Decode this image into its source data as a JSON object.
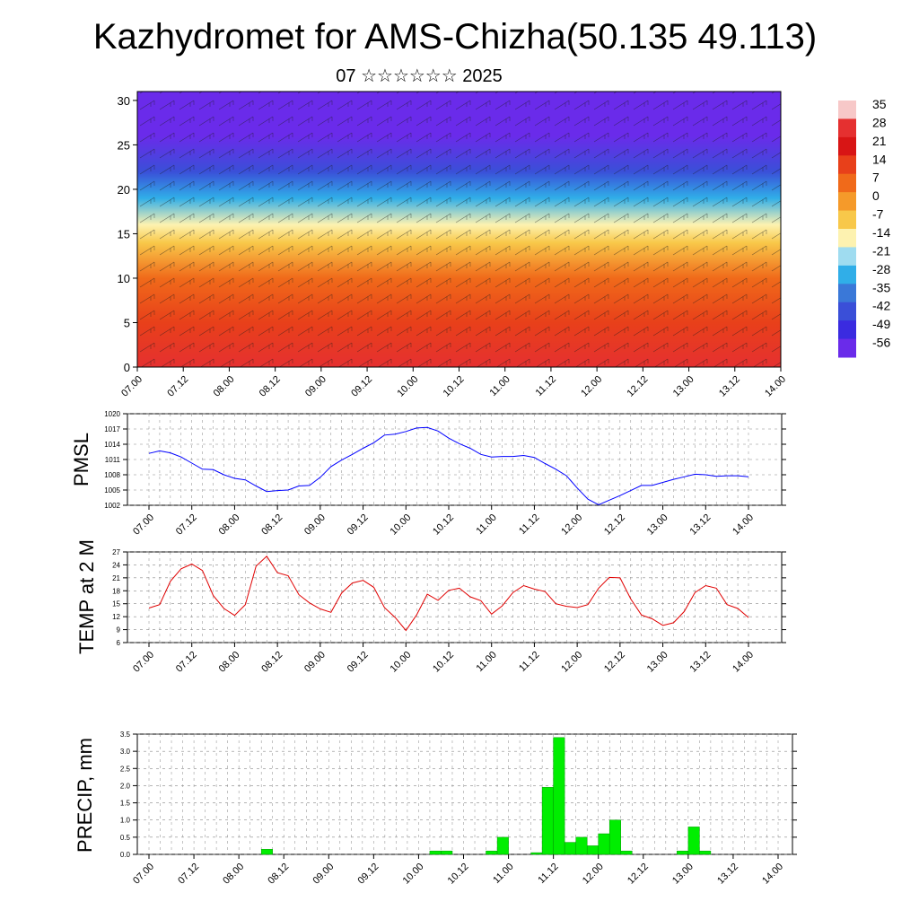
{
  "header": {
    "title": "Kazhydromet for AMS-Chizha(50.135 49.113)",
    "subtitle": "07 ☆☆☆☆☆☆ 2025"
  },
  "chart_data": [
    {
      "type": "heatmap",
      "title": "",
      "xlabel": "",
      "ylabel": "",
      "x_ticks": [
        "07.00",
        "07.12",
        "08.00",
        "08.12",
        "09.00",
        "09.12",
        "10.00",
        "10.12",
        "11.00",
        "11.12",
        "12.00",
        "12.12",
        "13.00",
        "13.12",
        "14.00"
      ],
      "y_ticks": [
        "0",
        "5",
        "10",
        "15",
        "20",
        "25",
        "30"
      ],
      "ylim": [
        0,
        31
      ],
      "colorbar": {
        "labels": [
          "35",
          "28",
          "21",
          "14",
          "7",
          "0",
          "-7",
          "-14",
          "-21",
          "-28",
          "-35",
          "-42",
          "-49",
          "-56"
        ],
        "colors": [
          "#f7c8c8",
          "#e53030",
          "#d81515",
          "#e8401a",
          "#f06a1a",
          "#f59a2a",
          "#f8c84a",
          "#fdf2b0",
          "#9fdcf0",
          "#30aee8",
          "#3a78d8",
          "#3a4fd8",
          "#3a2be0",
          "#6a2bea"
        ]
      },
      "temperature_profile": [
        {
          "h": 0,
          "t": 22
        },
        {
          "h": 5,
          "t": 14
        },
        {
          "h": 10,
          "t": 3
        },
        {
          "h": 14,
          "t": -9
        },
        {
          "h": 16,
          "t": -15
        },
        {
          "h": 19,
          "t": -30
        },
        {
          "h": 22,
          "t": -48
        },
        {
          "h": 26,
          "t": -58
        },
        {
          "h": 31,
          "t": -56
        }
      ]
    },
    {
      "type": "line",
      "ylabel": "PMSL",
      "ylim": [
        1002,
        1020
      ],
      "y_ticks": [
        "1002",
        "1005",
        "1008",
        "1011",
        "1014",
        "1017",
        "1020"
      ],
      "x_ticks": [
        "07.00",
        "07.12",
        "08.00",
        "08.12",
        "09.00",
        "09.12",
        "10.00",
        "10.12",
        "11.00",
        "11.12",
        "12.00",
        "12.12",
        "13.00",
        "13.12",
        "14.00"
      ],
      "color": "#0000ff",
      "x": [
        0,
        3,
        6,
        9,
        12,
        15,
        18,
        21,
        24,
        27,
        30,
        33,
        36,
        39,
        42,
        45,
        48,
        51,
        54,
        57,
        60,
        63,
        66,
        69,
        72,
        75,
        78,
        81,
        84,
        87,
        90,
        93,
        96,
        99,
        102,
        105,
        108,
        111,
        114,
        117,
        120,
        123,
        126,
        129,
        132,
        135,
        138,
        141,
        144,
        147,
        150,
        153,
        156,
        159,
        162,
        165,
        168
      ],
      "values": [
        1012.2,
        1012.7,
        1012.3,
        1011.5,
        1010.3,
        1009.1,
        1009.0,
        1008.0,
        1007.3,
        1007.0,
        1005.8,
        1004.7,
        1004.9,
        1005.0,
        1005.8,
        1005.9,
        1007.5,
        1009.6,
        1010.9,
        1012.0,
        1013.2,
        1014.3,
        1015.8,
        1016.0,
        1016.5,
        1017.2,
        1017.3,
        1016.6,
        1015.2,
        1014.1,
        1013.2,
        1012.0,
        1011.5,
        1011.6,
        1011.6,
        1011.8,
        1011.4,
        1010.2,
        1009.1,
        1007.8,
        1005.4,
        1003.2,
        1002.1,
        1003.0,
        1003.9,
        1004.9,
        1005.9,
        1005.9,
        1006.5,
        1007.1,
        1007.6,
        1008.1,
        1008.0,
        1007.7,
        1007.8,
        1007.8,
        1007.6
      ]
    },
    {
      "type": "line",
      "ylabel": "TEMP at 2 M",
      "ylim": [
        6,
        27
      ],
      "y_ticks": [
        "6",
        "9",
        "12",
        "15",
        "18",
        "21",
        "24",
        "27"
      ],
      "x_ticks": [
        "07.00",
        "07.12",
        "08.00",
        "08.12",
        "09.00",
        "09.12",
        "10.00",
        "10.12",
        "11.00",
        "11.12",
        "12.00",
        "12.12",
        "13.00",
        "13.12",
        "14.00"
      ],
      "color": "#e00000",
      "x": [
        0,
        3,
        6,
        9,
        12,
        15,
        18,
        21,
        24,
        27,
        30,
        33,
        36,
        39,
        42,
        45,
        48,
        51,
        54,
        57,
        60,
        63,
        66,
        69,
        72,
        75,
        78,
        81,
        84,
        87,
        90,
        93,
        96,
        99,
        102,
        105,
        108,
        111,
        114,
        117,
        120,
        123,
        126,
        129,
        132,
        135,
        138,
        141,
        144,
        147,
        150,
        153,
        156,
        159,
        162,
        165,
        168
      ],
      "values": [
        14.0,
        14.8,
        20.2,
        23.1,
        24.2,
        22.7,
        16.9,
        13.9,
        12.3,
        14.8,
        23.7,
        26.0,
        22.2,
        21.5,
        17.1,
        15.2,
        13.8,
        13.0,
        17.5,
        19.8,
        20.4,
        18.8,
        14.1,
        11.8,
        8.8,
        12.4,
        17.2,
        15.8,
        18.1,
        18.6,
        16.6,
        15.7,
        12.6,
        14.5,
        17.6,
        19.2,
        18.4,
        17.8,
        15.0,
        14.4,
        14.1,
        14.8,
        18.6,
        21.1,
        21.0,
        16.1,
        12.4,
        11.5,
        10.0,
        10.6,
        13.2,
        17.6,
        19.2,
        18.6,
        14.8,
        13.9,
        11.8
      ]
    },
    {
      "type": "bar",
      "ylabel": "PRECIP, mm",
      "ylim": [
        0,
        3.5
      ],
      "y_ticks": [
        "0.0",
        "0.5",
        "1.0",
        "1.5",
        "2.0",
        "2.5",
        "3.0",
        "3.5"
      ],
      "x_ticks": [
        "07.00",
        "07.12",
        "08.00",
        "08.12",
        "09.00",
        "09.12",
        "10.00",
        "10.12",
        "11.00",
        "11.12",
        "12.00",
        "12.12",
        "13.00",
        "13.12",
        "14.00"
      ],
      "color": "#00ee00",
      "bar_width_hours": 3,
      "x": [
        33,
        78,
        81,
        93,
        96,
        105,
        108,
        111,
        114,
        117,
        120,
        123,
        126,
        129,
        144,
        147,
        150
      ],
      "values": [
        0.15,
        0.1,
        0.1,
        0.1,
        0.5,
        0.05,
        1.95,
        3.4,
        0.35,
        0.5,
        0.25,
        0.6,
        1.0,
        0.1,
        0.1,
        0.8,
        0.1
      ]
    }
  ]
}
